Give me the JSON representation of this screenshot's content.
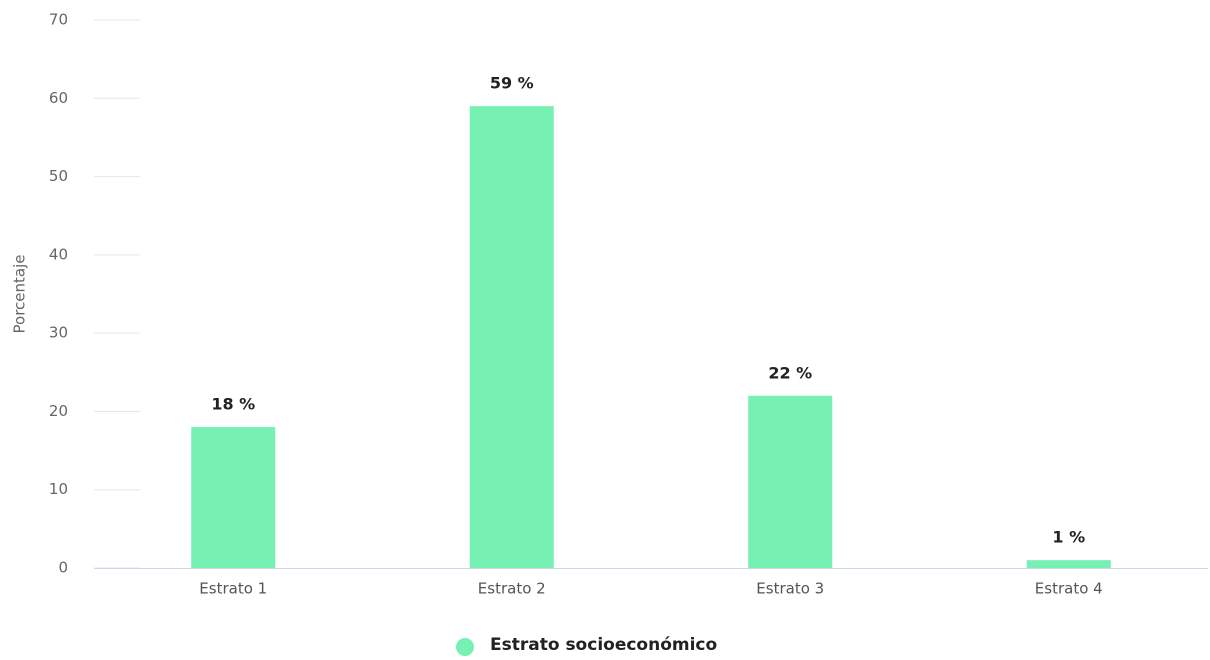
{
  "chart_data": {
    "type": "bar",
    "y_axis_label": "Porcentaje",
    "categories": [
      "Estrato 1",
      "Estrato 2",
      "Estrato 3",
      "Estrato 4"
    ],
    "series": [
      {
        "name": "Estrato socioeconómico",
        "color": "#77f0b4",
        "values": [
          18,
          59,
          22,
          1
        ],
        "value_labels": [
          "18 %",
          "59 %",
          "22 %",
          "1 %"
        ]
      }
    ],
    "ylim": [
      0,
      70
    ],
    "yticks": [
      0,
      10,
      20,
      30,
      40,
      50,
      60,
      70
    ],
    "grid": true,
    "legend": "bottom"
  }
}
